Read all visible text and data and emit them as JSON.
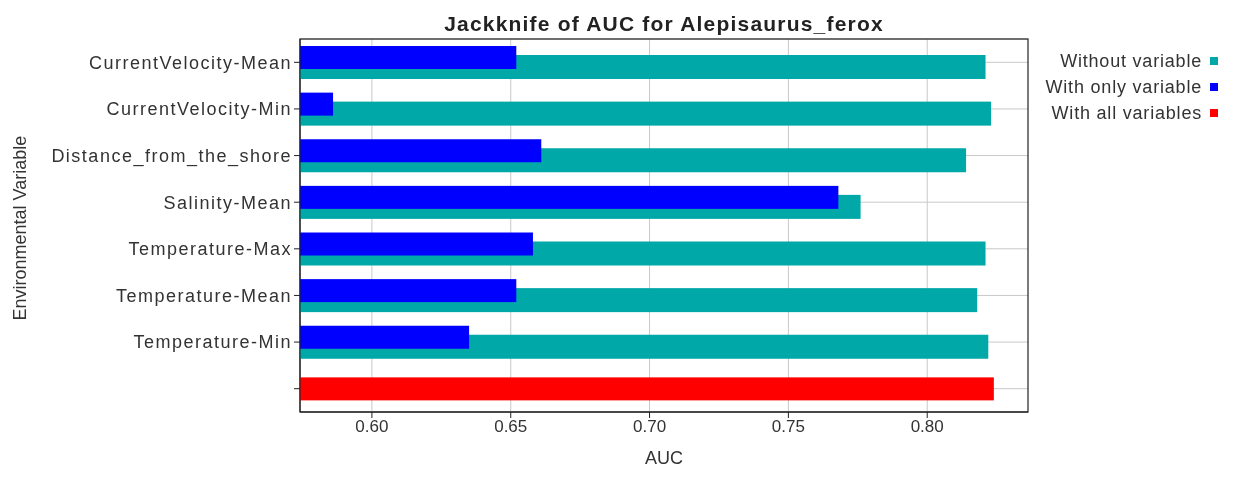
{
  "chart_data": {
    "type": "bar",
    "orientation": "horizontal",
    "title": "Jackknife of AUC for Alepisaurus_ferox",
    "xlabel": "AUC",
    "ylabel": "Environmental Variable",
    "categories": [
      "CurrentVelocity-Mean",
      "CurrentVelocity-Min",
      "Distance_from_the_shore",
      "Salinity-Mean",
      "Temperature-Max",
      "Temperature-Mean",
      "Temperature-Min",
      null
    ],
    "series": [
      {
        "name": "Without variable",
        "color": "#00a8a8",
        "values": [
          0.821,
          0.823,
          0.814,
          0.776,
          0.821,
          0.818,
          0.822,
          null
        ]
      },
      {
        "name": "With only variable",
        "color": "#0000ff",
        "values": [
          0.652,
          0.586,
          0.661,
          0.768,
          0.658,
          0.652,
          0.635,
          null
        ]
      },
      {
        "name": "With all variables",
        "color": "#ff0000",
        "values": [
          null,
          null,
          null,
          null,
          null,
          null,
          null,
          0.824
        ]
      }
    ],
    "xlim": [
      0.5741,
      0.8363
    ],
    "xticks": [
      {
        "value": 0.6,
        "label": "0.60"
      },
      {
        "value": 0.65,
        "label": "0.65"
      },
      {
        "value": 0.7,
        "label": "0.70"
      },
      {
        "value": 0.75,
        "label": "0.75"
      },
      {
        "value": 0.8,
        "label": "0.80"
      }
    ],
    "grid": true,
    "legend": "top right"
  }
}
